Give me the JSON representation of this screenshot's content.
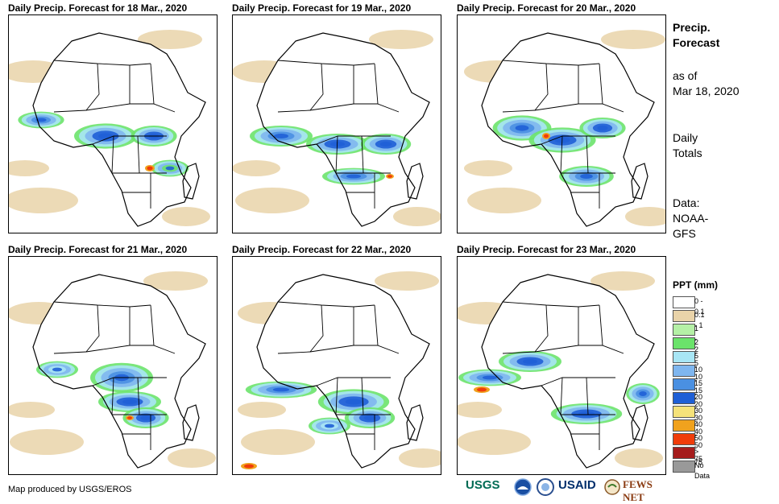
{
  "panels": [
    {
      "title": "Daily Precip. Forecast for 18 Mar., 2020"
    },
    {
      "title": "Daily Precip. Forecast for 19 Mar., 2020"
    },
    {
      "title": "Daily Precip. Forecast for 20 Mar., 2020"
    },
    {
      "title": "Daily Precip. Forecast for 21 Mar., 2020"
    },
    {
      "title": "Daily Precip. Forecast for 22 Mar., 2020"
    },
    {
      "title": "Daily Precip. Forecast for 23 Mar., 2020"
    }
  ],
  "sidebar": {
    "title_line1": "Precip.",
    "title_line2": "Forecast",
    "asof_line1": "as of",
    "asof_line2": "Mar 18, 2020",
    "totals_line1": "Daily",
    "totals_line2": "Totals",
    "data_line1": "Data:",
    "data_line2": "NOAA-",
    "data_line3": "GFS"
  },
  "legend": {
    "title": "PPT (mm)",
    "items": [
      {
        "label": "0 - 0.1",
        "color": "#ffffff"
      },
      {
        "label": "0.1 - 1",
        "color": "#e9d3a9"
      },
      {
        "label": "1 - 2",
        "color": "#b5f0a6"
      },
      {
        "label": "2 - 5",
        "color": "#6be36b"
      },
      {
        "label": "5 - 10",
        "color": "#a8e6f5"
      },
      {
        "label": "10 - 15",
        "color": "#7fb6ef"
      },
      {
        "label": "15 - 20",
        "color": "#4a90e2"
      },
      {
        "label": "20 - 30",
        "color": "#1f5fd6"
      },
      {
        "label": "30 - 40",
        "color": "#f5e27a"
      },
      {
        "label": "40 - 50",
        "color": "#f0a21e"
      },
      {
        "label": "50 - 75",
        "color": "#f03c0a"
      },
      {
        "label": "> 75",
        "color": "#a51c1c"
      },
      {
        "label": "No Data",
        "color": "#999999"
      }
    ]
  },
  "footer": {
    "credit": "Map produced by USGS/EROS"
  },
  "logos": {
    "usgs": "USGS",
    "usaid": "USAID",
    "fewsnet": "FEWS NET"
  },
  "colors": {
    "ocean_white": "#ffffff",
    "border": "#000000"
  }
}
